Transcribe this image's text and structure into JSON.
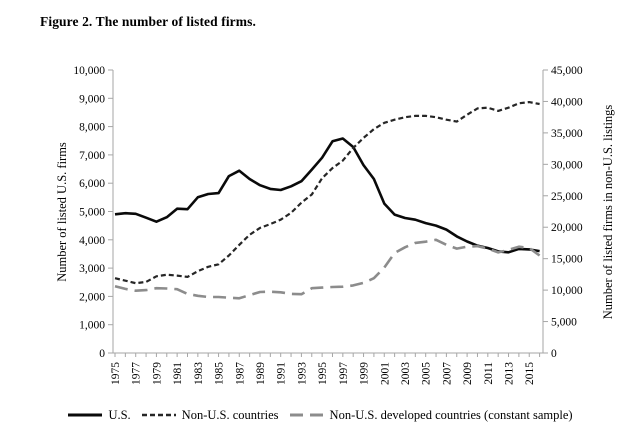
{
  "title": "Figure 2. The number of listed firms.",
  "colors": {
    "axis": "#a6a6a6",
    "us_line": "#0a0a0a",
    "non_us_line": "#262626",
    "developed_line": "#8c8c8c"
  },
  "chart_data": {
    "type": "line",
    "title": "Figure 2. The number of listed firms.",
    "grid": false,
    "legend_position": "bottom",
    "x": [
      1975,
      1976,
      1977,
      1978,
      1979,
      1980,
      1981,
      1982,
      1983,
      1984,
      1985,
      1986,
      1987,
      1988,
      1989,
      1990,
      1991,
      1992,
      1993,
      1994,
      1995,
      1996,
      1997,
      1998,
      1999,
      2000,
      2001,
      2002,
      2003,
      2004,
      2005,
      2006,
      2007,
      2008,
      2009,
      2010,
      2011,
      2012,
      2013,
      2014,
      2015,
      2016
    ],
    "x_tick_labels": [
      "1975",
      "1977",
      "1979",
      "1981",
      "1983",
      "1985",
      "1987",
      "1989",
      "1991",
      "1993",
      "1995",
      "1997",
      "1999",
      "2001",
      "2003",
      "2005",
      "2007",
      "2009",
      "2011",
      "2013",
      "2015"
    ],
    "left_axis": {
      "label": "Number of listed U.S. firms",
      "min": 0,
      "max": 10000,
      "step": 1000
    },
    "right_axis": {
      "label": "Number of listed firms in non-U.S. listings",
      "min": 0,
      "max": 45000,
      "step": 5000
    },
    "series": [
      {
        "name": "U.S.",
        "axis": "left",
        "style": "solid",
        "color": "#0a0a0a",
        "values": [
          4900,
          4940,
          4920,
          4780,
          4640,
          4800,
          5100,
          5080,
          5500,
          5620,
          5650,
          6250,
          6440,
          6150,
          5930,
          5800,
          5760,
          5890,
          6070,
          6480,
          6900,
          7480,
          7580,
          7280,
          6640,
          6150,
          5280,
          4890,
          4770,
          4710,
          4590,
          4500,
          4360,
          4120,
          3940,
          3790,
          3710,
          3590,
          3560,
          3680,
          3660,
          3600
        ]
      },
      {
        "name": "Non-U.S. countries",
        "axis": "right",
        "style": "dashed",
        "color": "#262626",
        "values": [
          11900,
          11500,
          11100,
          11300,
          12200,
          12450,
          12300,
          12100,
          13000,
          13700,
          14100,
          15500,
          17200,
          18800,
          19900,
          20500,
          21200,
          22300,
          23900,
          25200,
          27800,
          29400,
          30600,
          32600,
          34200,
          35600,
          36600,
          37100,
          37500,
          37700,
          37700,
          37500,
          37100,
          36800,
          37900,
          38900,
          39000,
          38500,
          39000,
          39700,
          39900,
          39600
        ]
      },
      {
        "name": "Non-U.S. developed countries (constant sample)",
        "axis": "right",
        "style": "longdash",
        "color": "#8c8c8c",
        "values": [
          10600,
          10200,
          9900,
          10000,
          10300,
          10250,
          10150,
          9400,
          9100,
          8900,
          8900,
          8800,
          8700,
          9200,
          9700,
          9750,
          9650,
          9400,
          9350,
          10300,
          10400,
          10500,
          10550,
          10750,
          11150,
          11900,
          13600,
          15900,
          16800,
          17500,
          17700,
          18000,
          17200,
          16600,
          16900,
          17000,
          16600,
          16000,
          16400,
          16900,
          16700,
          15500
        ]
      }
    ]
  }
}
